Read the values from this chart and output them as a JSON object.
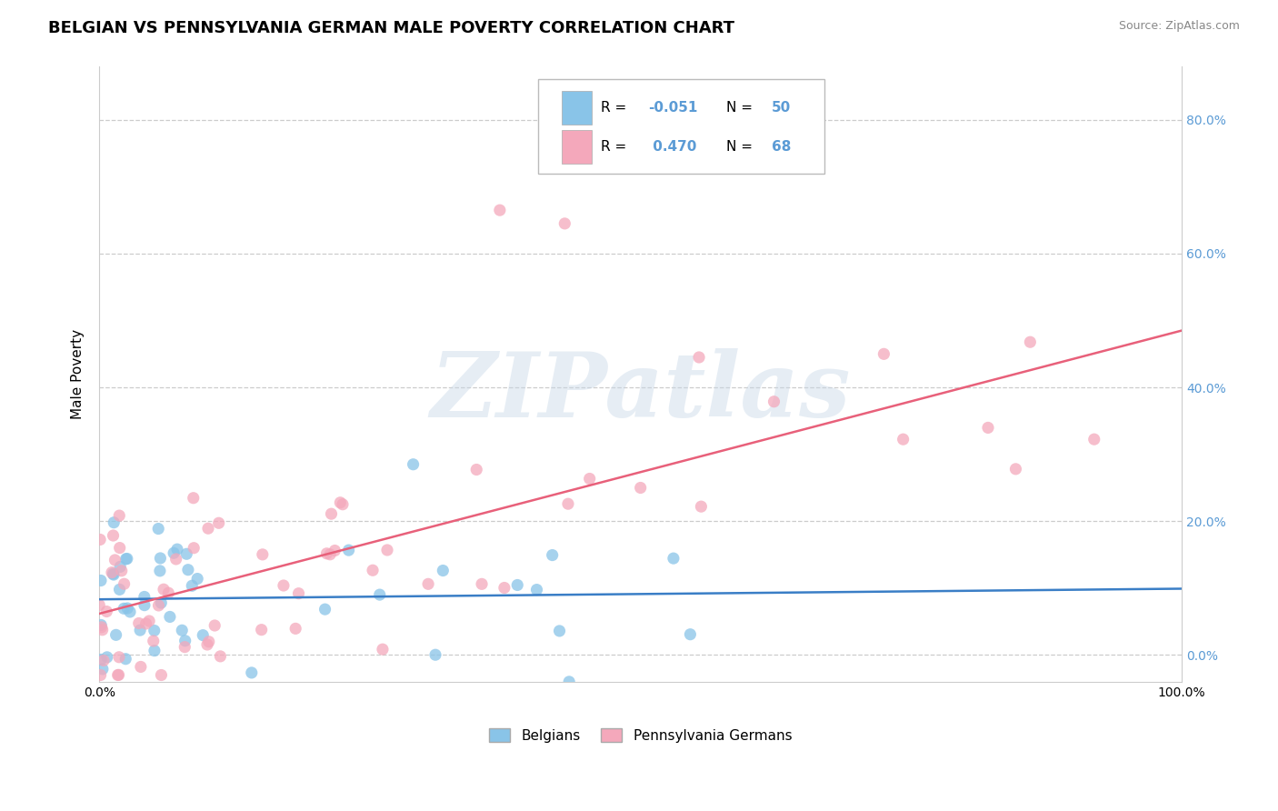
{
  "title": "BELGIAN VS PENNSYLVANIA GERMAN MALE POVERTY CORRELATION CHART",
  "source": "Source: ZipAtlas.com",
  "ylabel_label": "Male Poverty",
  "legend_labels": [
    "Belgians",
    "Pennsylvania Germans"
  ],
  "legend_r": [
    -0.051,
    0.47
  ],
  "legend_n": [
    50,
    68
  ],
  "color_belgian": "#89c4e8",
  "color_pagen": "#f4a8bb",
  "color_line_belgian": "#3a7ec6",
  "color_line_pagen": "#e8607a",
  "xlim": [
    0.0,
    1.0
  ],
  "ylim": [
    -0.04,
    0.88
  ],
  "yticks": [
    0.0,
    0.2,
    0.4,
    0.6,
    0.8
  ],
  "ytick_labels": [
    "0.0%",
    "20.0%",
    "40.0%",
    "60.0%",
    "80.0%"
  ],
  "watermark_text": "ZIPatlas",
  "background_color": "#ffffff",
  "grid_color": "#cccccc",
  "title_fontsize": 13,
  "axis_label_fontsize": 11,
  "tick_fontsize": 10,
  "right_tick_color": "#5b9bd5",
  "legend_r_color": "#5b9bd5",
  "legend_n_color": "#5b9bd5"
}
